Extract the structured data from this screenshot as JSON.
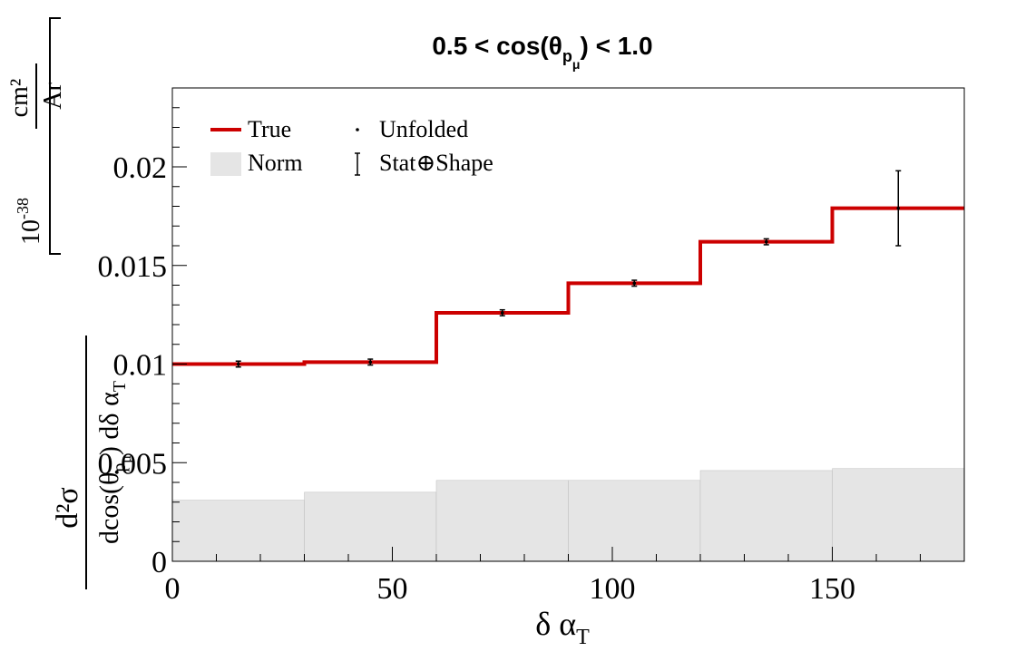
{
  "chart_data": {
    "type": "bar",
    "title": "0.5 < cos(θ",
    "title_sub": "p",
    "title_subsub": "μ",
    "title_tail": ") < 1.0",
    "xlabel": "δ α",
    "xlabel_sub": "T",
    "ylabel_parts": {
      "numerator": "d²σ",
      "denominator_main": "dcos(θ",
      "denominator_sub": "p",
      "denominator_subsub": "μ",
      "denominator_tail": ") dδ α",
      "denominator_tail_sub": "T",
      "unit_prefix": "10",
      "unit_exp": "-38",
      "unit_num": "cm²",
      "unit_den": "Ar"
    },
    "xlim": [
      0,
      180
    ],
    "ylim": [
      0,
      0.024
    ],
    "x_ticks": [
      {
        "value": 0,
        "label": "0"
      },
      {
        "value": 50,
        "label": "50"
      },
      {
        "value": 100,
        "label": "100"
      },
      {
        "value": 150,
        "label": "150"
      }
    ],
    "y_ticks": [
      {
        "value": 0,
        "label": "0"
      },
      {
        "value": 0.005,
        "label": "0.005"
      },
      {
        "value": 0.01,
        "label": "0.01"
      },
      {
        "value": 0.015,
        "label": "0.015"
      },
      {
        "value": 0.02,
        "label": "0.02"
      }
    ],
    "bin_edges": [
      0,
      30,
      60,
      90,
      120,
      150,
      180
    ],
    "series": [
      {
        "name": "True",
        "kind": "step",
        "color": "#cc0000",
        "values": [
          0.01,
          0.0101,
          0.0126,
          0.0141,
          0.0162,
          0.0179
        ]
      },
      {
        "name": "Norm",
        "kind": "filled",
        "color": "#e5e5e5",
        "values": [
          0.0031,
          0.0035,
          0.0041,
          0.0041,
          0.0046,
          0.0047
        ]
      },
      {
        "name": "Unfolded",
        "kind": "points",
        "color": "#000000",
        "x": [
          15,
          45,
          75,
          105,
          135,
          165
        ],
        "values": [
          0.01,
          0.0101,
          0.0126,
          0.0141,
          0.0162,
          0.0179
        ]
      }
    ],
    "error_series_name": "Stat⊕Shape",
    "errors": [
      0.00015,
      0.00015,
      0.00015,
      0.00015,
      0.00015,
      0.0019
    ],
    "legend": {
      "placement": "top-left",
      "entries": [
        {
          "label": "True",
          "kind": "line"
        },
        {
          "label": "Norm",
          "kind": "box"
        },
        {
          "label": "Unfolded",
          "kind": "dot"
        },
        {
          "label": "Stat⊕Shape",
          "kind": "errbar"
        }
      ]
    }
  }
}
